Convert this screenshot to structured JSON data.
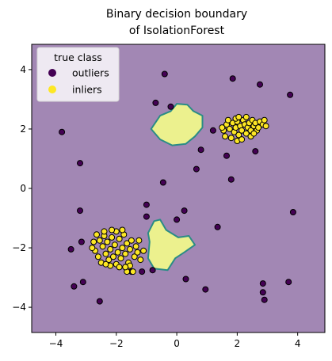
{
  "chart_data": {
    "type": "scatter",
    "title": [
      "Binary decision boundary",
      "of IsolationForest"
    ],
    "xlabel": "",
    "ylabel": "",
    "xlim": [
      -4.8,
      4.9
    ],
    "ylim": [
      -4.85,
      4.85
    ],
    "xticks": [
      -4,
      -2,
      0,
      2,
      4
    ],
    "yticks": [
      -4,
      -2,
      0,
      2,
      4
    ],
    "grid": false,
    "legend": {
      "title": "true class",
      "position": "top-left",
      "entries": [
        "outliers",
        "inliers"
      ]
    },
    "colors": {
      "outliers": "#440154",
      "inliers": "#fde725",
      "background": "#a287b4",
      "boundary": "#2a8c86",
      "region": "#ecf18e"
    },
    "inlier_regions": [
      {
        "polygon": [
          [
            -0.85,
            2.0
          ],
          [
            -0.55,
            1.65
          ],
          [
            -0.15,
            1.45
          ],
          [
            0.3,
            1.5
          ],
          [
            0.6,
            1.75
          ],
          [
            0.85,
            2.05
          ],
          [
            0.85,
            2.45
          ],
          [
            0.55,
            2.6
          ],
          [
            0.35,
            2.82
          ],
          [
            0.0,
            2.85
          ],
          [
            -0.2,
            2.6
          ],
          [
            -0.55,
            2.45
          ]
        ]
      },
      {
        "polygon": [
          [
            -0.95,
            -1.5
          ],
          [
            -0.75,
            -1.1
          ],
          [
            -0.55,
            -1.05
          ],
          [
            -0.35,
            -1.4
          ],
          [
            0.05,
            -1.65
          ],
          [
            0.4,
            -1.6
          ],
          [
            0.6,
            -1.9
          ],
          [
            0.25,
            -2.15
          ],
          [
            -0.05,
            -2.35
          ],
          [
            -0.3,
            -2.75
          ],
          [
            -0.75,
            -2.7
          ],
          [
            -0.95,
            -2.35
          ],
          [
            -0.9,
            -1.8
          ]
        ]
      }
    ],
    "series": [
      {
        "name": "outliers",
        "points": [
          [
            -0.4,
            3.85
          ],
          [
            1.85,
            3.7
          ],
          [
            2.75,
            3.5
          ],
          [
            3.75,
            3.15
          ],
          [
            -0.7,
            2.88
          ],
          [
            -0.2,
            2.75
          ],
          [
            -3.8,
            1.9
          ],
          [
            1.2,
            1.95
          ],
          [
            0.8,
            1.3
          ],
          [
            1.65,
            1.1
          ],
          [
            2.6,
            1.25
          ],
          [
            -3.2,
            0.85
          ],
          [
            0.65,
            0.65
          ],
          [
            -0.45,
            0.2
          ],
          [
            1.8,
            0.3
          ],
          [
            -3.2,
            -0.75
          ],
          [
            -1.0,
            -0.55
          ],
          [
            0.25,
            -0.75
          ],
          [
            0.0,
            -1.05
          ],
          [
            -1.0,
            -0.95
          ],
          [
            3.85,
            -0.8
          ],
          [
            1.35,
            -1.3
          ],
          [
            -3.15,
            -1.8
          ],
          [
            -3.5,
            -2.05
          ],
          [
            -1.5,
            -2.8
          ],
          [
            -1.15,
            -2.8
          ],
          [
            -0.8,
            -2.75
          ],
          [
            -3.1,
            -3.15
          ],
          [
            0.3,
            -3.05
          ],
          [
            3.7,
            -3.15
          ],
          [
            -3.4,
            -3.3
          ],
          [
            2.85,
            -3.2
          ],
          [
            0.95,
            -3.4
          ],
          [
            2.85,
            -3.5
          ],
          [
            2.9,
            -3.75
          ],
          [
            -2.55,
            -3.8
          ]
        ]
      },
      {
        "name": "inliers",
        "points": [
          [
            1.65,
            2.15
          ],
          [
            1.75,
            2.0
          ],
          [
            1.85,
            2.2
          ],
          [
            1.9,
            1.9
          ],
          [
            1.95,
            2.05
          ],
          [
            2.0,
            2.25
          ],
          [
            2.05,
            1.8
          ],
          [
            2.1,
            2.1
          ],
          [
            2.15,
            1.95
          ],
          [
            2.2,
            2.3
          ],
          [
            2.25,
            2.15
          ],
          [
            2.3,
            1.85
          ],
          [
            2.35,
            2.05
          ],
          [
            2.4,
            2.2
          ],
          [
            2.45,
            1.95
          ],
          [
            2.5,
            2.3
          ],
          [
            2.55,
            2.1
          ],
          [
            2.6,
            2.2
          ],
          [
            2.65,
            1.95
          ],
          [
            2.75,
            2.25
          ],
          [
            2.85,
            2.15
          ],
          [
            2.9,
            2.3
          ],
          [
            2.95,
            2.1
          ],
          [
            1.55,
            1.95
          ],
          [
            1.7,
            2.3
          ],
          [
            1.8,
            1.7
          ],
          [
            2.0,
            1.6
          ],
          [
            2.15,
            1.65
          ],
          [
            2.3,
            2.4
          ],
          [
            2.45,
            1.75
          ],
          [
            1.95,
            2.35
          ],
          [
            2.7,
            2.05
          ],
          [
            1.6,
            1.75
          ],
          [
            1.5,
            2.05
          ],
          [
            2.05,
            2.4
          ],
          [
            2.55,
            1.85
          ],
          [
            -2.65,
            -1.55
          ],
          [
            -2.55,
            -1.75
          ],
          [
            -2.45,
            -1.95
          ],
          [
            -2.4,
            -1.6
          ],
          [
            -2.35,
            -2.2
          ],
          [
            -2.3,
            -1.8
          ],
          [
            -2.25,
            -2.4
          ],
          [
            -2.2,
            -2.05
          ],
          [
            -2.15,
            -1.65
          ],
          [
            -2.1,
            -2.3
          ],
          [
            -2.05,
            -1.9
          ],
          [
            -2.0,
            -2.55
          ],
          [
            -1.95,
            -2.15
          ],
          [
            -1.9,
            -1.7
          ],
          [
            -1.85,
            -2.35
          ],
          [
            -1.8,
            -2.0
          ],
          [
            -1.75,
            -1.55
          ],
          [
            -1.7,
            -2.2
          ],
          [
            -1.65,
            -1.85
          ],
          [
            -1.6,
            -2.5
          ],
          [
            -1.55,
            -2.05
          ],
          [
            -1.5,
            -1.75
          ],
          [
            -1.4,
            -2.3
          ],
          [
            -1.35,
            -1.95
          ],
          [
            -1.3,
            -2.15
          ],
          [
            -1.2,
            -2.4
          ],
          [
            -2.7,
            -2.1
          ],
          [
            -2.6,
            -2.3
          ],
          [
            -2.5,
            -2.5
          ],
          [
            -2.4,
            -1.45
          ],
          [
            -2.0,
            -1.45
          ],
          [
            -1.9,
            -2.65
          ],
          [
            -1.65,
            -2.8
          ],
          [
            -1.45,
            -2.8
          ],
          [
            -2.2,
            -2.6
          ],
          [
            -1.8,
            -1.4
          ],
          [
            -1.55,
            -2.6
          ],
          [
            -2.75,
            -1.8
          ],
          [
            -1.25,
            -1.75
          ],
          [
            -1.1,
            -2.1
          ],
          [
            -2.35,
            -2.55
          ],
          [
            -2.15,
            -1.4
          ],
          [
            -1.7,
            -2.65
          ],
          [
            -2.8,
            -2.0
          ]
        ]
      }
    ]
  }
}
